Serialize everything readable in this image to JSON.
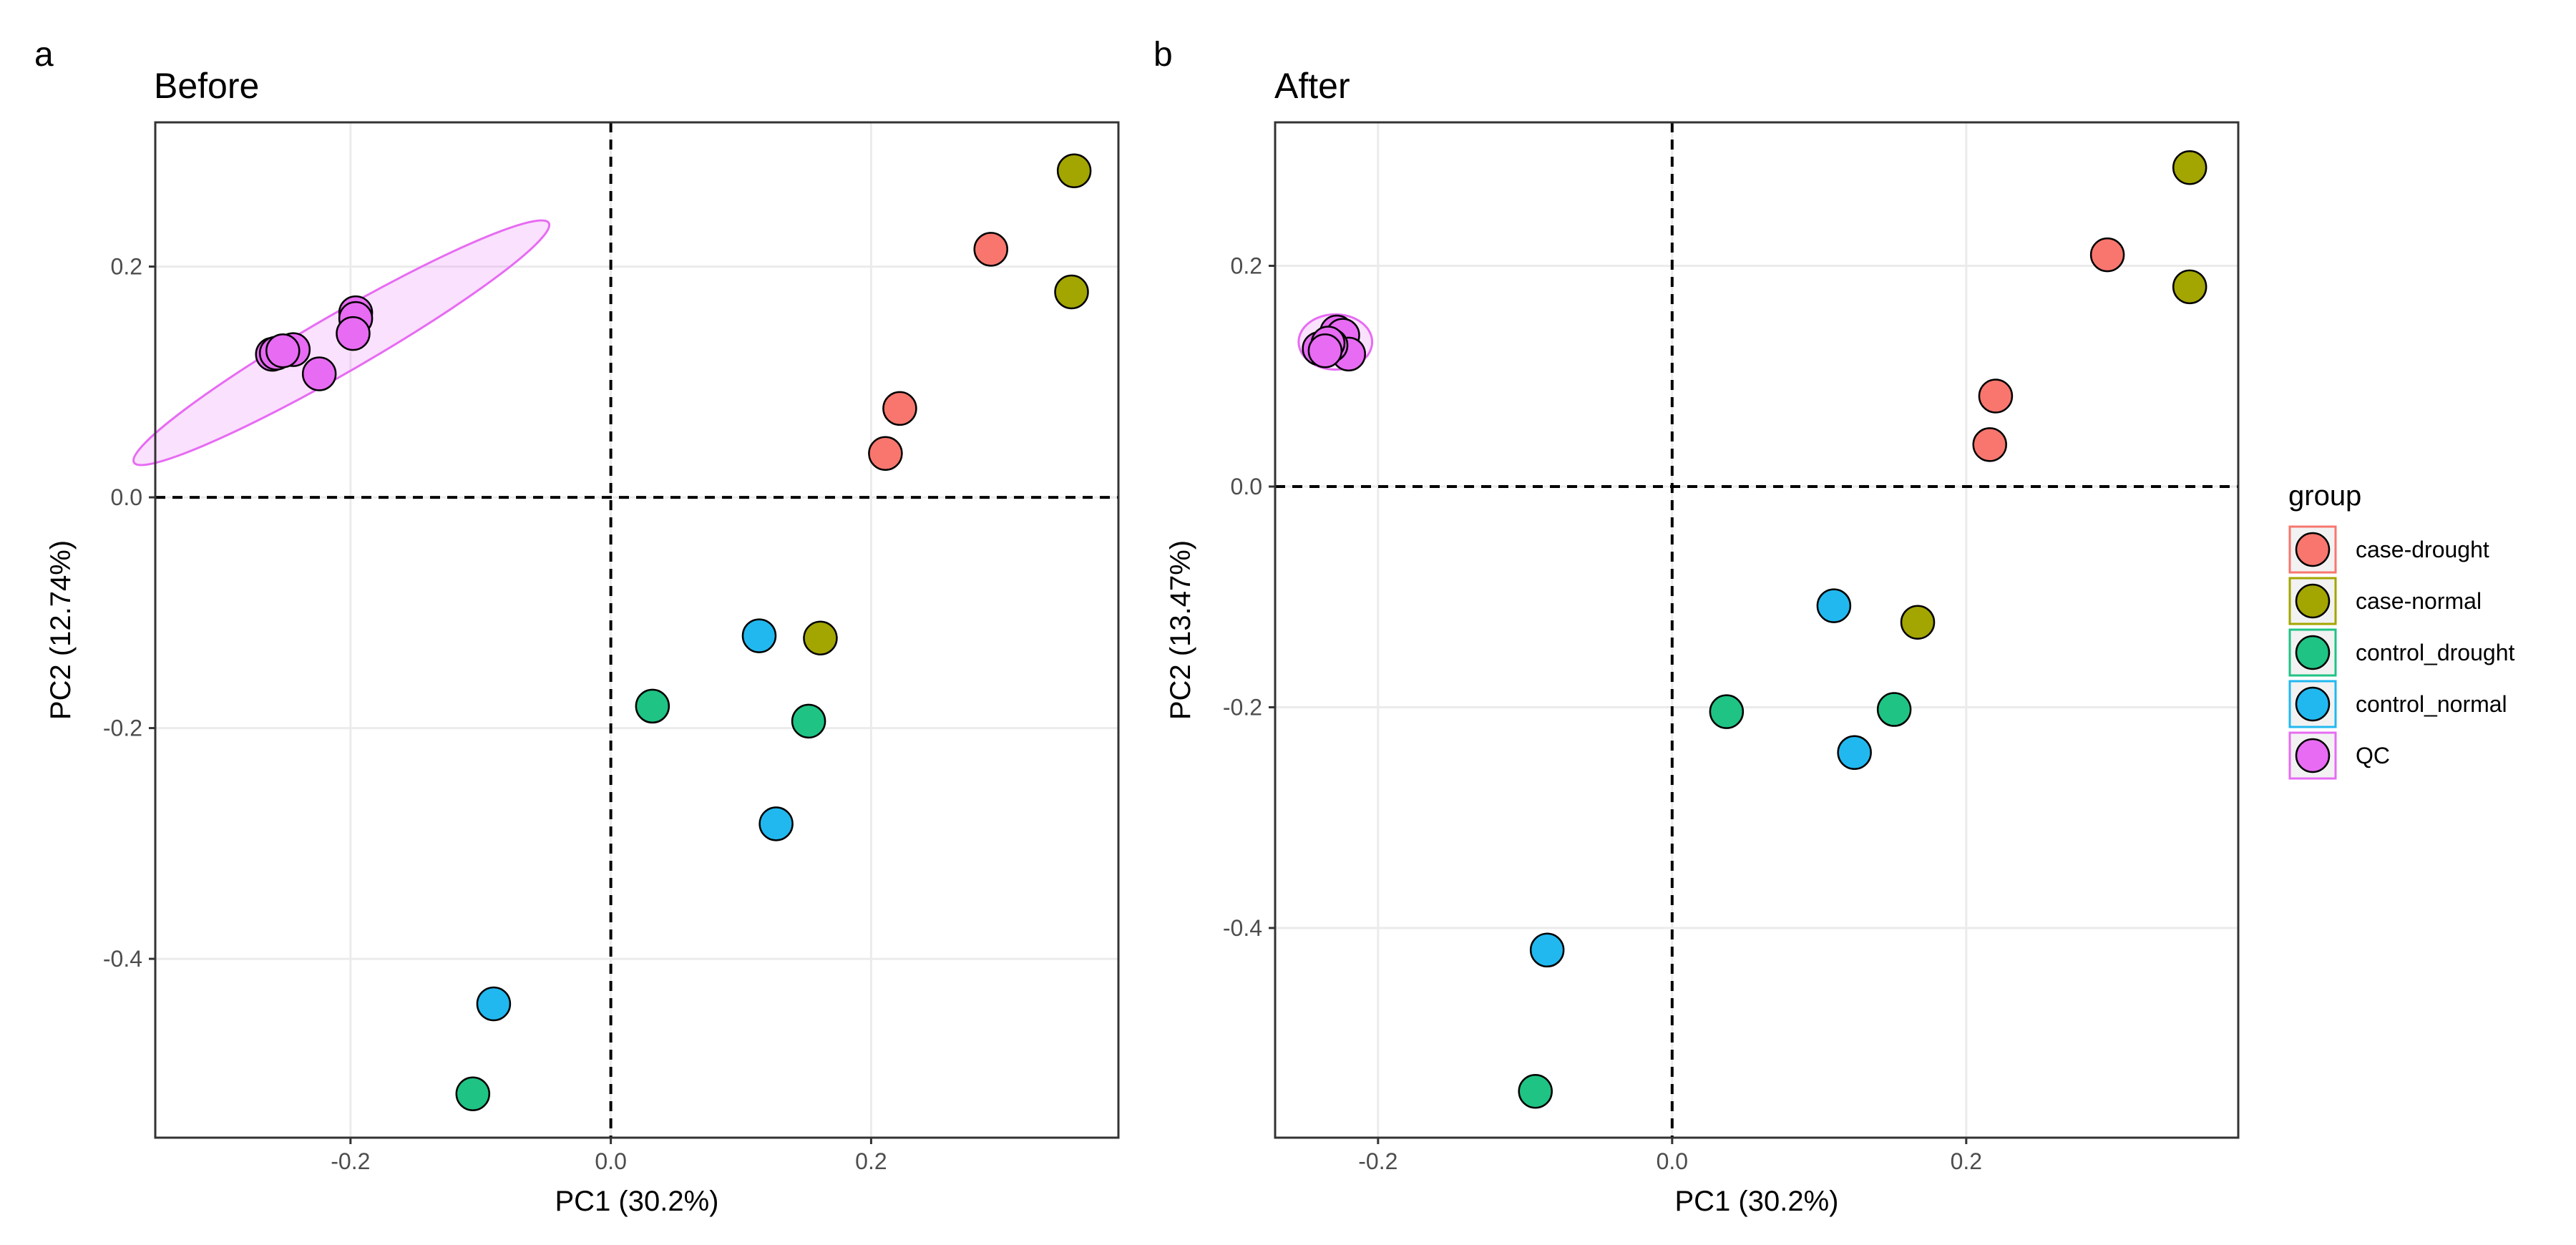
{
  "legend": {
    "title": "group",
    "entries": [
      {
        "name": "case-drought",
        "color": "#F8766D"
      },
      {
        "name": "case-normal",
        "color": "#A3A500"
      },
      {
        "name": "control_drought",
        "color": "#1FC384"
      },
      {
        "name": "control_normal",
        "color": "#21B8F0"
      },
      {
        "name": "QC",
        "color": "#E76BF3"
      }
    ]
  },
  "chart_data": [
    {
      "type": "scatter",
      "panel_tag": "a",
      "title": "Before",
      "xlabel": "PC1 (30.2%)",
      "ylabel": "PC2 (12.74%)",
      "xlim": [
        -0.35,
        0.39
      ],
      "ylim": [
        -0.555,
        0.325
      ],
      "xticks": [
        -0.2,
        0.0,
        0.2
      ],
      "xtick_labels": [
        "-0.2",
        "0.0",
        "0.2"
      ],
      "yticks": [
        -0.4,
        -0.2,
        0.0,
        0.2
      ],
      "ytick_labels": [
        "-0.4",
        "-0.2",
        "0.0",
        "0.2"
      ],
      "reference_lines": {
        "x": 0,
        "y": 0,
        "style": "dashed"
      },
      "grid": true,
      "qc_ellipse": {
        "cx": -0.207,
        "cy": 0.134,
        "rx": 0.184,
        "ry": 0.025,
        "angle_deg": 30
      },
      "series": [
        {
          "name": "case-drought",
          "points": [
            [
              0.292,
              0.215
            ],
            [
              0.222,
              0.077
            ],
            [
              0.211,
              0.038
            ]
          ]
        },
        {
          "name": "case-normal",
          "points": [
            [
              0.356,
              0.283
            ],
            [
              0.354,
              0.178
            ],
            [
              0.161,
              -0.122
            ]
          ]
        },
        {
          "name": "control_drought",
          "points": [
            [
              0.032,
              -0.181
            ],
            [
              0.152,
              -0.194
            ],
            [
              -0.106,
              -0.517
            ]
          ]
        },
        {
          "name": "control_normal",
          "points": [
            [
              0.114,
              -0.12
            ],
            [
              0.127,
              -0.283
            ],
            [
              -0.09,
              -0.439
            ]
          ]
        },
        {
          "name": "QC",
          "points": [
            [
              -0.196,
              0.16
            ],
            [
              -0.196,
              0.155
            ],
            [
              -0.198,
              0.142
            ],
            [
              -0.244,
              0.128
            ],
            [
              -0.26,
              0.124
            ],
            [
              -0.257,
              0.125
            ],
            [
              -0.252,
              0.127
            ],
            [
              -0.224,
              0.107
            ]
          ]
        }
      ]
    },
    {
      "type": "scatter",
      "panel_tag": "b",
      "title": "After",
      "xlabel": "PC1 (30.2%)",
      "ylabel": "PC2 (13.47%)",
      "xlim": [
        -0.27,
        0.385
      ],
      "ylim": [
        -0.59,
        0.33
      ],
      "xticks": [
        -0.2,
        0.0,
        0.2
      ],
      "xtick_labels": [
        "-0.2",
        "0.0",
        "0.2"
      ],
      "yticks": [
        -0.4,
        -0.2,
        0.0,
        0.2
      ],
      "ytick_labels": [
        "-0.4",
        "-0.2",
        "0.0",
        "0.2"
      ],
      "reference_lines": {
        "x": 0,
        "y": 0,
        "style": "dashed"
      },
      "grid": true,
      "qc_ellipse": {
        "cx": -0.229,
        "cy": 0.131,
        "rx": 0.025,
        "ry": 0.025,
        "angle_deg": 0
      },
      "series": [
        {
          "name": "case-drought",
          "points": [
            [
              0.296,
              0.21
            ],
            [
              0.22,
              0.082
            ],
            [
              0.216,
              0.038
            ]
          ]
        },
        {
          "name": "case-normal",
          "points": [
            [
              0.352,
              0.289
            ],
            [
              0.352,
              0.181
            ],
            [
              0.167,
              -0.123
            ]
          ]
        },
        {
          "name": "control_drought",
          "points": [
            [
              0.037,
              -0.204
            ],
            [
              0.151,
              -0.202
            ],
            [
              -0.093,
              -0.548
            ]
          ]
        },
        {
          "name": "control_normal",
          "points": [
            [
              0.11,
              -0.108
            ],
            [
              0.124,
              -0.241
            ],
            [
              -0.085,
              -0.42
            ]
          ]
        },
        {
          "name": "QC",
          "points": [
            [
              -0.228,
              0.14
            ],
            [
              -0.224,
              0.137
            ],
            [
              -0.22,
              0.12
            ],
            [
              -0.232,
              0.128
            ],
            [
              -0.24,
              0.125
            ],
            [
              -0.234,
              0.13
            ],
            [
              -0.236,
              0.123
            ]
          ]
        }
      ]
    }
  ]
}
